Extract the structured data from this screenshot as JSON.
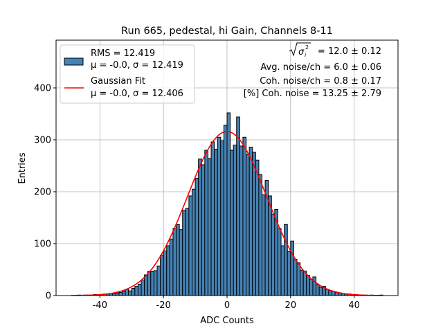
{
  "chart_data": {
    "type": "bar",
    "title": "Run 665, pedestal, hi Gain, Channels 8-11",
    "xlabel": "ADC Counts",
    "ylabel": "Entries",
    "xlim": [
      -53.8,
      53.8
    ],
    "ylim": [
      0,
      492
    ],
    "xticks": [
      -40,
      -20,
      0,
      20,
      40
    ],
    "yticks": [
      0,
      100,
      200,
      300,
      400
    ],
    "grid": true,
    "bin_start": -49,
    "bin_width": 1,
    "values": [
      0,
      0,
      1,
      0,
      1,
      1,
      1,
      2,
      1,
      2,
      3,
      3,
      4,
      4,
      5,
      6,
      8,
      12,
      9,
      14,
      18,
      22,
      30,
      40,
      46,
      46,
      48,
      57,
      78,
      86,
      96,
      109,
      129,
      137,
      127,
      164,
      168,
      192,
      205,
      226,
      263,
      252,
      280,
      264,
      296,
      282,
      305,
      298,
      328,
      352,
      280,
      290,
      344,
      288,
      305,
      272,
      286,
      276,
      261,
      233,
      194,
      222,
      192,
      157,
      166,
      129,
      96,
      137,
      85,
      105,
      70,
      63,
      49,
      47,
      39,
      31,
      36,
      21,
      16,
      18,
      12,
      10,
      8,
      6,
      5,
      4,
      3,
      3,
      2,
      2,
      1,
      1,
      1,
      0,
      1,
      0,
      0,
      1
    ],
    "bar_color": "#4682b4",
    "fit": {
      "type": "gaussian",
      "mu": -0.0,
      "sigma": 12.406,
      "peak": 316,
      "range": [
        -49,
        49
      ],
      "color": "#ff0000"
    },
    "legend": {
      "placement": "upper-left",
      "entries": [
        {
          "line1": "RMS = 12.419",
          "line2": "μ = -0.0, σ = 12.419"
        },
        {
          "line1": "Gaussian Fit",
          "line2": "μ = -0.0, σ = 12.406"
        }
      ]
    },
    "annotations": {
      "sqrt_label": "σ",
      "sqrt_sub": "i",
      "sqrt_sup": "2",
      "sqrt_value": "= 12.0 ± 0.12",
      "avg_noise": "Avg. noise/ch = 6.0 ± 0.06",
      "coh_noise": "Coh. noise/ch = 0.8 ± 0.17",
      "coh_pct": "[%] Coh. noise = 13.25 ± 2.79"
    }
  }
}
